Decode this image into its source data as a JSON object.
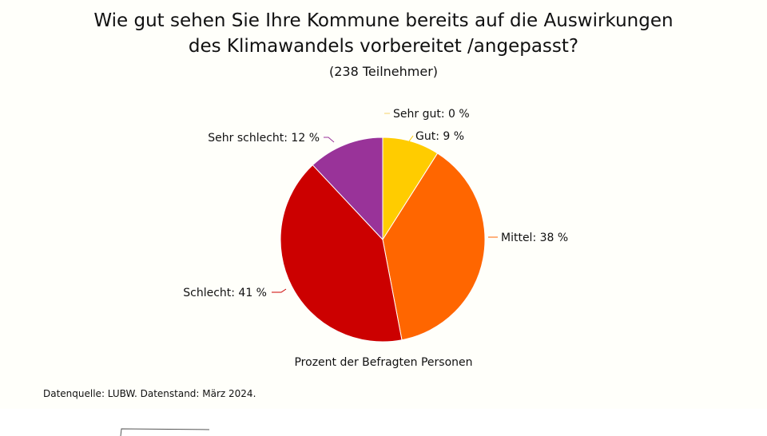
{
  "chart_data": {
    "type": "pie",
    "title_line1": "Wie gut sehen Sie Ihre Kommune bereits auf die Auswirkungen",
    "title_line2": "des Klimawandels vorbereitet /angepasst?",
    "subtitle": "(238 Teilnehmer)",
    "xlabel": "Prozent der Befragten Personen",
    "slices": [
      {
        "label": "Sehr gut",
        "value": 0,
        "display": "Sehr gut: 0 %",
        "color": "#f5d36b"
      },
      {
        "label": "Gut",
        "value": 9,
        "display": "Gut: 9 %",
        "color": "#ffcc00"
      },
      {
        "label": "Mittel",
        "value": 38,
        "display": "Mittel: 38 %",
        "color": "#ff6600"
      },
      {
        "label": "Schlecht",
        "value": 41,
        "display": "Schlecht: 41 %",
        "color": "#cc0000"
      },
      {
        "label": "Sehr schlecht",
        "value": 12,
        "display": "Sehr schlecht: 12 %",
        "color": "#993399"
      }
    ]
  },
  "footer": {
    "source": "Datenquelle: LUBW. Datenstand: März 2024."
  }
}
